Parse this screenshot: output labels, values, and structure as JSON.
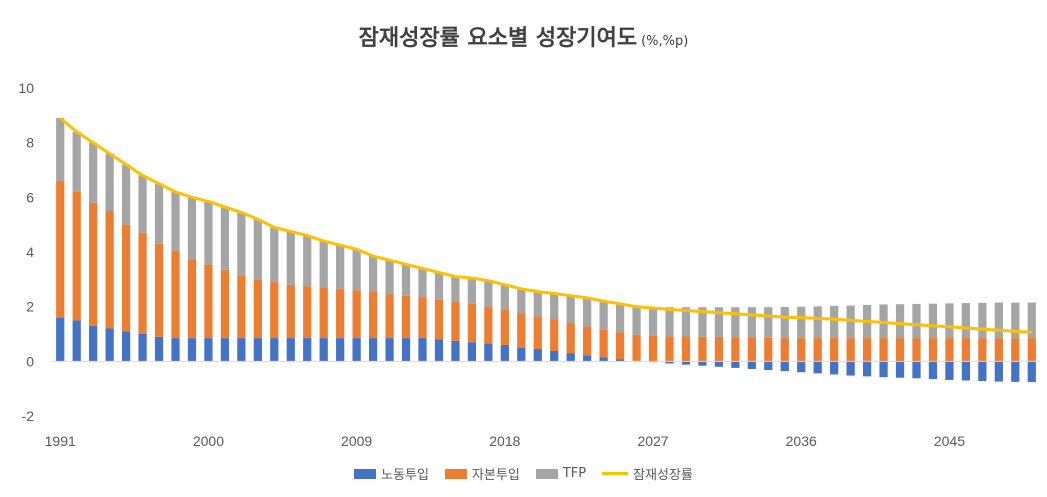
{
  "chart_data": {
    "type": "bar",
    "title": "잠재성장률 요소별 성장기여도",
    "title_unit": "(%,%p)",
    "stacked": true,
    "x": [
      1991,
      1992,
      1993,
      1994,
      1995,
      1996,
      1997,
      1998,
      1999,
      2000,
      2001,
      2002,
      2003,
      2004,
      2005,
      2006,
      2007,
      2008,
      2009,
      2010,
      2011,
      2012,
      2013,
      2014,
      2015,
      2016,
      2017,
      2018,
      2019,
      2020,
      2021,
      2022,
      2023,
      2024,
      2025,
      2026,
      2027,
      2028,
      2029,
      2030,
      2031,
      2032,
      2033,
      2034,
      2035,
      2036,
      2037,
      2038,
      2039,
      2040,
      2041,
      2042,
      2043,
      2044,
      2045,
      2046,
      2047,
      2048,
      2049,
      2050
    ],
    "x_tick_labels": [
      "1991",
      "2000",
      "2009",
      "2018",
      "2027",
      "2036",
      "2045"
    ],
    "ylim": [
      -2,
      10
    ],
    "y_ticks": [
      -2,
      0,
      2,
      4,
      6,
      8,
      10
    ],
    "grid": false,
    "legend_position": "bottom",
    "series": [
      {
        "name": "노동투입",
        "kind": "bar",
        "color": "#4472c4",
        "values": [
          1.6,
          1.5,
          1.3,
          1.2,
          1.1,
          1.0,
          0.9,
          0.85,
          0.85,
          0.85,
          0.85,
          0.85,
          0.85,
          0.85,
          0.85,
          0.85,
          0.85,
          0.85,
          0.85,
          0.85,
          0.85,
          0.85,
          0.85,
          0.8,
          0.75,
          0.7,
          0.65,
          0.6,
          0.5,
          0.45,
          0.38,
          0.3,
          0.22,
          0.15,
          0.08,
          0.02,
          -0.03,
          -0.08,
          -0.12,
          -0.16,
          -0.2,
          -0.24,
          -0.28,
          -0.32,
          -0.36,
          -0.4,
          -0.44,
          -0.48,
          -0.52,
          -0.55,
          -0.58,
          -0.6,
          -0.62,
          -0.65,
          -0.68,
          -0.7,
          -0.72,
          -0.74,
          -0.75,
          -0.76
        ]
      },
      {
        "name": "자본투입",
        "kind": "bar",
        "color": "#ed7d31",
        "values": [
          5.0,
          4.7,
          4.5,
          4.3,
          3.9,
          3.7,
          3.4,
          3.2,
          2.9,
          2.7,
          2.5,
          2.3,
          2.15,
          2.05,
          1.95,
          1.9,
          1.85,
          1.8,
          1.75,
          1.7,
          1.6,
          1.55,
          1.5,
          1.45,
          1.42,
          1.4,
          1.35,
          1.3,
          1.25,
          1.2,
          1.15,
          1.1,
          1.05,
          1.0,
          0.98,
          0.95,
          0.93,
          0.92,
          0.91,
          0.9,
          0.89,
          0.88,
          0.87,
          0.86,
          0.85,
          0.85,
          0.85,
          0.85,
          0.85,
          0.85,
          0.85,
          0.85,
          0.85,
          0.85,
          0.85,
          0.85,
          0.85,
          0.85,
          0.85,
          0.85
        ]
      },
      {
        "name": "TFP",
        "kind": "bar",
        "color": "#a5a5a5",
        "values": [
          2.3,
          2.2,
          2.2,
          2.1,
          2.2,
          2.1,
          2.2,
          2.15,
          2.25,
          2.3,
          2.3,
          2.3,
          2.2,
          2.0,
          1.95,
          1.85,
          1.7,
          1.6,
          1.5,
          1.3,
          1.25,
          1.15,
          1.05,
          1.0,
          0.95,
          0.95,
          0.95,
          0.9,
          0.9,
          0.9,
          0.95,
          1.0,
          1.05,
          1.05,
          1.04,
          1.03,
          1.05,
          1.06,
          1.07,
          1.08,
          1.09,
          1.1,
          1.11,
          1.12,
          1.14,
          1.15,
          1.16,
          1.18,
          1.19,
          1.21,
          1.23,
          1.24,
          1.25,
          1.26,
          1.27,
          1.28,
          1.29,
          1.3,
          1.3,
          1.3
        ]
      },
      {
        "name": "잠재성장률",
        "kind": "line",
        "color": "#ffc000",
        "values": [
          8.9,
          8.4,
          8.0,
          7.6,
          7.2,
          6.8,
          6.5,
          6.2,
          6.0,
          5.85,
          5.65,
          5.45,
          5.2,
          4.9,
          4.75,
          4.6,
          4.4,
          4.25,
          4.1,
          3.85,
          3.7,
          3.55,
          3.4,
          3.25,
          3.1,
          3.05,
          2.95,
          2.8,
          2.65,
          2.55,
          2.48,
          2.4,
          2.32,
          2.2,
          2.1,
          2.0,
          1.95,
          1.9,
          1.86,
          1.82,
          1.78,
          1.74,
          1.7,
          1.66,
          1.62,
          1.6,
          1.57,
          1.54,
          1.5,
          1.46,
          1.42,
          1.38,
          1.34,
          1.3,
          1.26,
          1.22,
          1.18,
          1.14,
          1.1,
          1.06
        ]
      }
    ]
  }
}
